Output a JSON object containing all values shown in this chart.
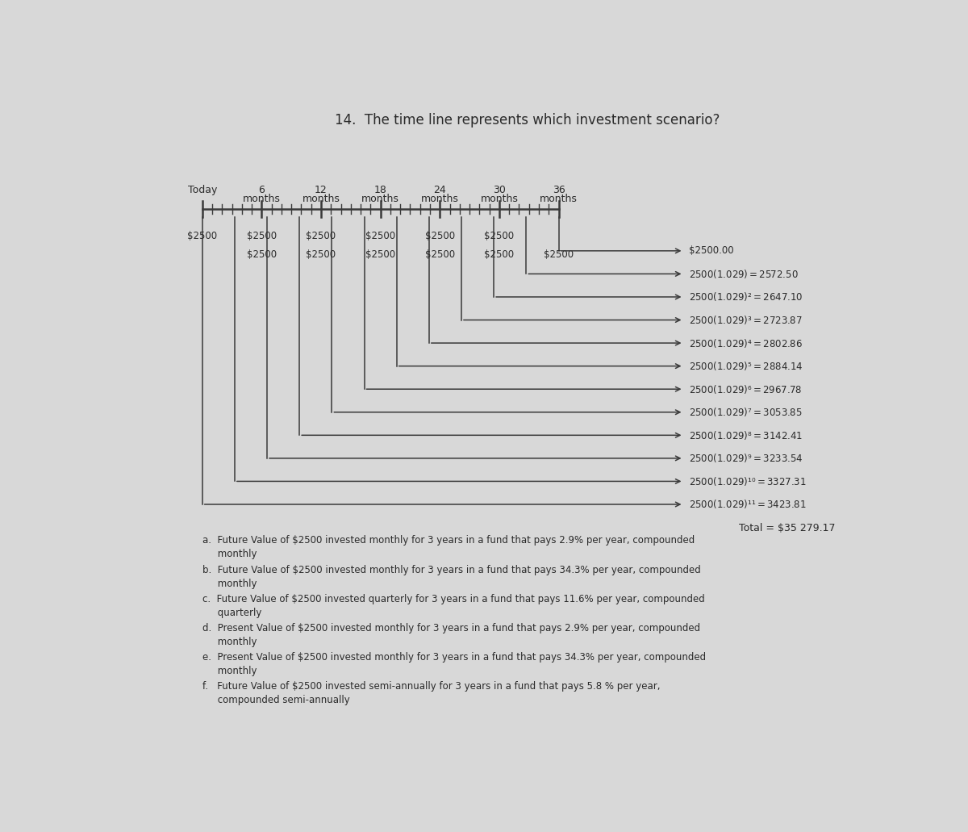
{
  "title": "14.  The time line represents which investment scenario?",
  "title_fontsize": 12,
  "bg_color": "#d8d8d8",
  "fv_labels": [
    "$2500.00",
    "$2500(1.029) = $2572.50",
    "$2500(1.029)² = $2647.10",
    "$2500(1.029)³ = $2723.87",
    "$2500(1.029)⁴ = $2802.86",
    "$2500(1.029)⁵ = $2884.14",
    "$2500(1.029)⁶ = $2967.78",
    "$2500(1.029)⁷ = $3053.85",
    "$2500(1.029)⁸ = $3142.41",
    "$2500(1.029)⁹ = $3233.54",
    "$2500(1.029)¹⁰ = $3327.31",
    "$2500(1.029)¹¹ = $3423.81"
  ],
  "total_label": "Total = $35 279.17",
  "answer_options": [
    "a.  Future Value of $2500 invested monthly for 3 years in a fund that pays 2.9% per year, compounded\n     monthly",
    "b.  Future Value of $2500 invested monthly for 3 years in a fund that pays 34.3% per year, compounded\n     monthly",
    "c.  Future Value of $2500 invested quarterly for 3 years in a fund that pays 11.6% per year, compounded\n     quarterly",
    "d.  Present Value of $2500 invested monthly for 3 years in a fund that pays 2.9% per year, compounded\n     monthly",
    "e.  Present Value of $2500 invested monthly for 3 years in a fund that pays 34.3% per year, compounded\n     monthly",
    "f.   Future Value of $2500 invested semi-annually for 3 years in a fund that pays 5.8 % per year,\n     compounded semi-annually"
  ],
  "text_color": "#2a2a2a",
  "line_color": "#3a3a3a",
  "arrow_color": "#3a3a3a",
  "tl_label_nums": [
    "Today",
    "6",
    "12",
    "18",
    "24",
    "30",
    "36"
  ],
  "tl_label_unit": [
    "",
    "months",
    "months",
    "months",
    "months",
    "months",
    "months"
  ]
}
